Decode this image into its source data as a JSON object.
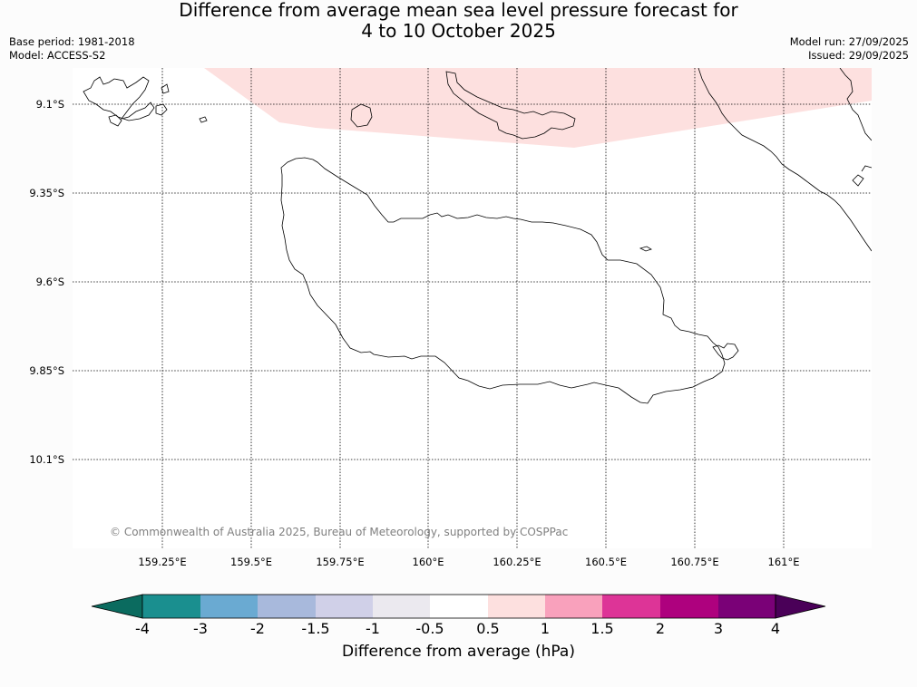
{
  "title": {
    "line1": "Difference from average mean sea level pressure forecast for",
    "line2": "4 to 10 October 2025"
  },
  "meta_left": {
    "base_period": "Base period: 1981-2018",
    "model": "Model: ACCESS-S2"
  },
  "meta_right": {
    "model_run": "Model run: 27/09/2025",
    "issued": "Issued: 29/09/2025"
  },
  "map": {
    "lat_labels": [
      "9.1°S",
      "9.35°S",
      "9.6°S",
      "9.85°S",
      "10.1°S"
    ],
    "lon_labels": [
      "159.25°E",
      "159.5°E",
      "159.75°E",
      "160°E",
      "160.25°E",
      "160.5°E",
      "160.75°E",
      "161°E"
    ],
    "copyright": "© Commonwealth of Australia 2025, Bureau of Meteorology, supported by COSPPac",
    "anomaly_region_bin": "0.5 to 1",
    "colors": {
      "anomaly_fill": "#fde0df",
      "coastline": "#000000",
      "gridline": "#000000"
    }
  },
  "colorbar": {
    "ticks": [
      "-4",
      "-3",
      "-2",
      "-1.5",
      "-1",
      "-0.5",
      "0.5",
      "1",
      "1.5",
      "2",
      "3",
      "4"
    ],
    "colors": [
      "#1a8f8f",
      "#6aaad2",
      "#a8b9dc",
      "#d0d0e8",
      "#ebe9ef",
      "#ffffff",
      "#fde0df",
      "#f9a1bc",
      "#dd3497",
      "#ae017e",
      "#7a0177"
    ],
    "under_color": "#0b6b5f",
    "over_color": "#4a0058",
    "label": "Difference from average (hPa)"
  }
}
